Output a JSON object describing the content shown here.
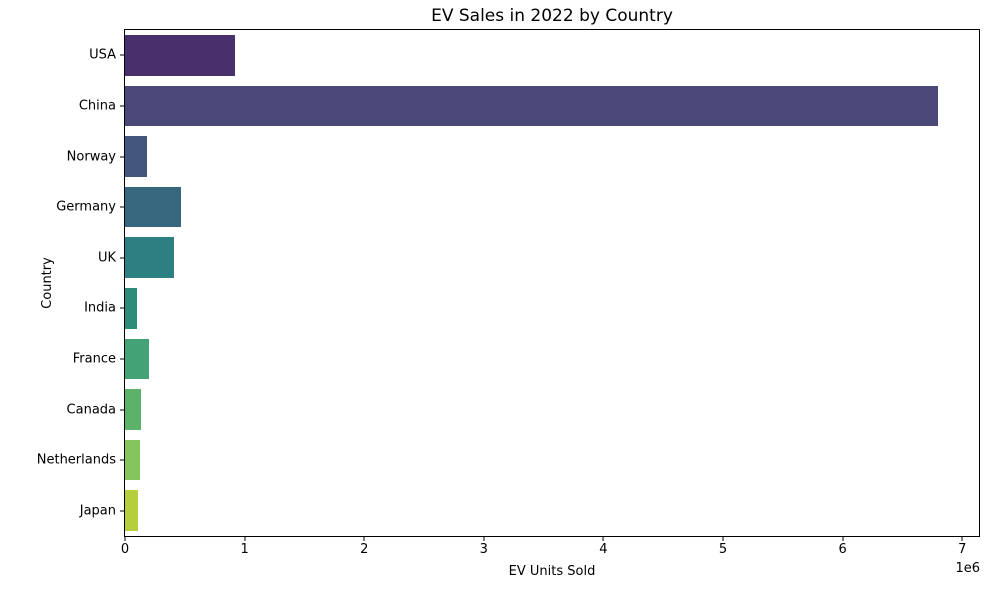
{
  "chart_data": {
    "type": "bar",
    "orientation": "horizontal",
    "title": "EV Sales in 2022 by Country",
    "xlabel": "EV Units Sold",
    "ylabel": "Country",
    "categories": [
      "USA",
      "China",
      "Norway",
      "Germany",
      "UK",
      "India",
      "France",
      "Canada",
      "Netherlands",
      "Japan"
    ],
    "values": [
      920000,
      6800000,
      185000,
      470000,
      410000,
      100000,
      200000,
      130000,
      125000,
      110000
    ],
    "bar_colors": [
      "#48306d",
      "#4a4878",
      "#44567e",
      "#37687f",
      "#2e7f82",
      "#2d8b79",
      "#43a377",
      "#5cb269",
      "#85c55e",
      "#b5ce3b"
    ],
    "xlim": [
      0,
      7140000
    ],
    "xtick_values": [
      0,
      1000000,
      2000000,
      3000000,
      4000000,
      5000000,
      6000000,
      7000000
    ],
    "xtick_labels": [
      "0",
      "1",
      "2",
      "3",
      "4",
      "5",
      "6",
      "7"
    ],
    "x_offset_text": "1e6",
    "grid": false,
    "legend": "none",
    "background": "#ffffff"
  }
}
